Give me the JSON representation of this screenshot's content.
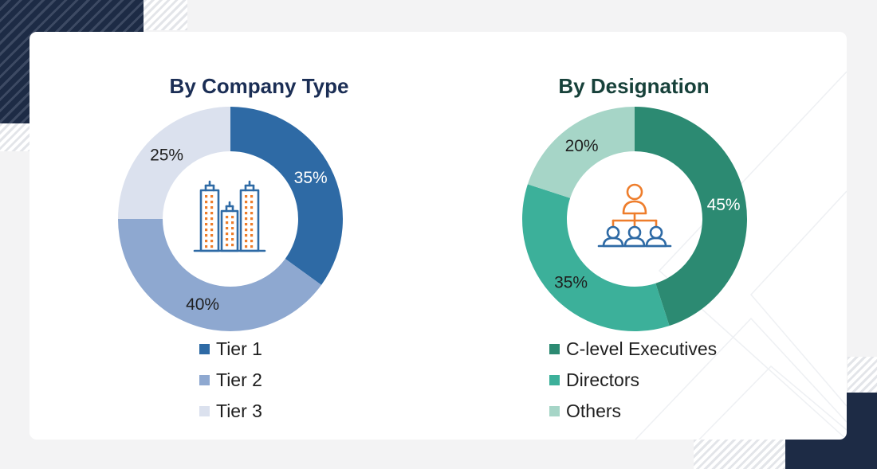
{
  "chart_data": [
    {
      "type": "pie",
      "title": "By Company Type",
      "categories": [
        "Tier 1",
        "Tier 2",
        "Tier 3"
      ],
      "values": [
        35,
        40,
        25
      ],
      "labels": [
        "35%",
        "40%",
        "25%"
      ],
      "colors": [
        "#2e6aa5",
        "#8ea8d0",
        "#dbe1ee"
      ],
      "label_colors": [
        "#ffffff",
        "#1f1f1f",
        "#1f1f1f"
      ],
      "title_color": "#1b2e55",
      "center_icon": "buildings-icon",
      "legend_position": "bottom"
    },
    {
      "type": "pie",
      "title": "By Designation",
      "categories": [
        "C-level Executives",
        "Directors",
        "Others"
      ],
      "values": [
        45,
        35,
        20
      ],
      "labels": [
        "45%",
        "35%",
        "20%"
      ],
      "colors": [
        "#2c8a72",
        "#3cb09a",
        "#a6d5c7"
      ],
      "label_colors": [
        "#ffffff",
        "#1f1f1f",
        "#1f1f1f"
      ],
      "title_color": "#17413a",
      "center_icon": "org-hierarchy-icon",
      "legend_position": "bottom"
    }
  ]
}
